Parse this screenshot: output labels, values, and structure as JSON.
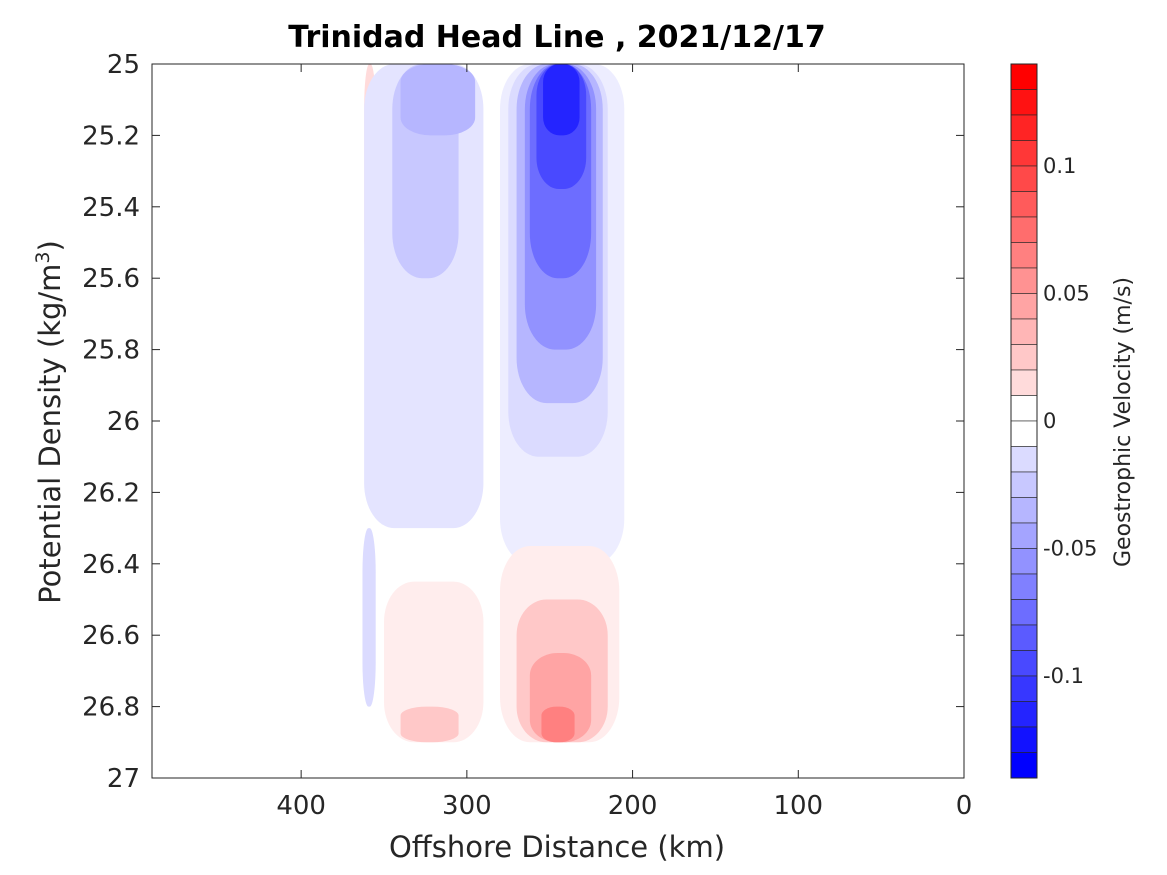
{
  "chart_data": {
    "type": "heatmap",
    "title": "Trinidad Head Line , 2021/12/17",
    "xlabel": "Offshore Distance (km)",
    "ylabel_main": "Potential Density (kg/m",
    "ylabel_sup": "3",
    "ylabel_close": ")",
    "xlim": [
      490,
      0
    ],
    "ylim": [
      25,
      27
    ],
    "x_reversed": true,
    "y_reversed": true,
    "xticks": [
      {
        "value": 400,
        "label": "400"
      },
      {
        "value": 300,
        "label": "300"
      },
      {
        "value": 200,
        "label": "200"
      },
      {
        "value": 100,
        "label": "100"
      },
      {
        "value": 0,
        "label": "0"
      }
    ],
    "yticks": [
      {
        "value": 25,
        "label": "25"
      },
      {
        "value": 25.2,
        "label": "25.2"
      },
      {
        "value": 25.4,
        "label": "25.4"
      },
      {
        "value": 25.6,
        "label": "25.6"
      },
      {
        "value": 25.8,
        "label": "25.8"
      },
      {
        "value": 26,
        "label": "26"
      },
      {
        "value": 26.2,
        "label": "26.2"
      },
      {
        "value": 26.4,
        "label": "26.4"
      },
      {
        "value": 26.6,
        "label": "26.6"
      },
      {
        "value": 26.8,
        "label": "26.8"
      },
      {
        "value": 27,
        "label": "27"
      }
    ],
    "colorbar": {
      "label": "Geostrophic Velocity (m/s)",
      "range": [
        -0.14,
        0.14
      ],
      "step": 0.01,
      "neg_color": "#0000ff",
      "pos_color": "#ff0000",
      "ticks": [
        {
          "value": 0.1,
          "label": "0.1"
        },
        {
          "value": 0.05,
          "label": "0.05"
        },
        {
          "value": 0,
          "label": "0"
        },
        {
          "value": -0.05,
          "label": "-0.05"
        },
        {
          "value": -0.1,
          "label": "-0.1"
        }
      ]
    },
    "features": [
      {
        "name": "red-strip-west",
        "x": [
          362,
          355
        ],
        "y": [
          25,
          25.6
        ],
        "v": 0.02
      },
      {
        "name": "blue-west-body",
        "x": [
          362,
          290
        ],
        "y": [
          25,
          26.3
        ],
        "v": -0.015
      },
      {
        "name": "blue-west-cell",
        "x": [
          345,
          305
        ],
        "y": [
          25,
          25.6
        ],
        "v": -0.03
      },
      {
        "name": "blue-west-core",
        "x": [
          340,
          295
        ],
        "y": [
          25,
          25.2
        ],
        "v": -0.04
      },
      {
        "name": "blue-core-level-1",
        "x": [
          280,
          205
        ],
        "y": [
          25,
          26.4
        ],
        "v": -0.01
      },
      {
        "name": "blue-core-level-2",
        "x": [
          275,
          215
        ],
        "y": [
          25,
          26.1
        ],
        "v": -0.02
      },
      {
        "name": "blue-core-level-3",
        "x": [
          270,
          218
        ],
        "y": [
          25,
          25.95
        ],
        "v": -0.04
      },
      {
        "name": "blue-core-level-4",
        "x": [
          265,
          222
        ],
        "y": [
          25,
          25.8
        ],
        "v": -0.06
      },
      {
        "name": "blue-core-level-5",
        "x": [
          262,
          225
        ],
        "y": [
          25,
          25.6
        ],
        "v": -0.08
      },
      {
        "name": "blue-core-level-6",
        "x": [
          258,
          228
        ],
        "y": [
          25,
          25.35
        ],
        "v": -0.1
      },
      {
        "name": "blue-core-level-7",
        "x": [
          254,
          232
        ],
        "y": [
          25,
          25.2
        ],
        "v": -0.12
      },
      {
        "name": "blue-strip-deep-west",
        "x": [
          363,
          355
        ],
        "y": [
          26.3,
          26.8
        ],
        "v": -0.02
      },
      {
        "name": "red-deep-west",
        "x": [
          350,
          290
        ],
        "y": [
          26.45,
          26.9
        ],
        "v": 0.01
      },
      {
        "name": "red-deep-west-core",
        "x": [
          340,
          305
        ],
        "y": [
          26.8,
          26.9
        ],
        "v": 0.03
      },
      {
        "name": "red-deep-core-level-1",
        "x": [
          280,
          208
        ],
        "y": [
          26.35,
          26.9
        ],
        "v": 0.01
      },
      {
        "name": "red-deep-core-level-2",
        "x": [
          270,
          215
        ],
        "y": [
          26.5,
          26.9
        ],
        "v": 0.03
      },
      {
        "name": "red-deep-core-level-3",
        "x": [
          262,
          225
        ],
        "y": [
          26.65,
          26.9
        ],
        "v": 0.05
      },
      {
        "name": "red-deep-core-level-4",
        "x": [
          255,
          235
        ],
        "y": [
          26.8,
          26.9
        ],
        "v": 0.07
      }
    ]
  }
}
